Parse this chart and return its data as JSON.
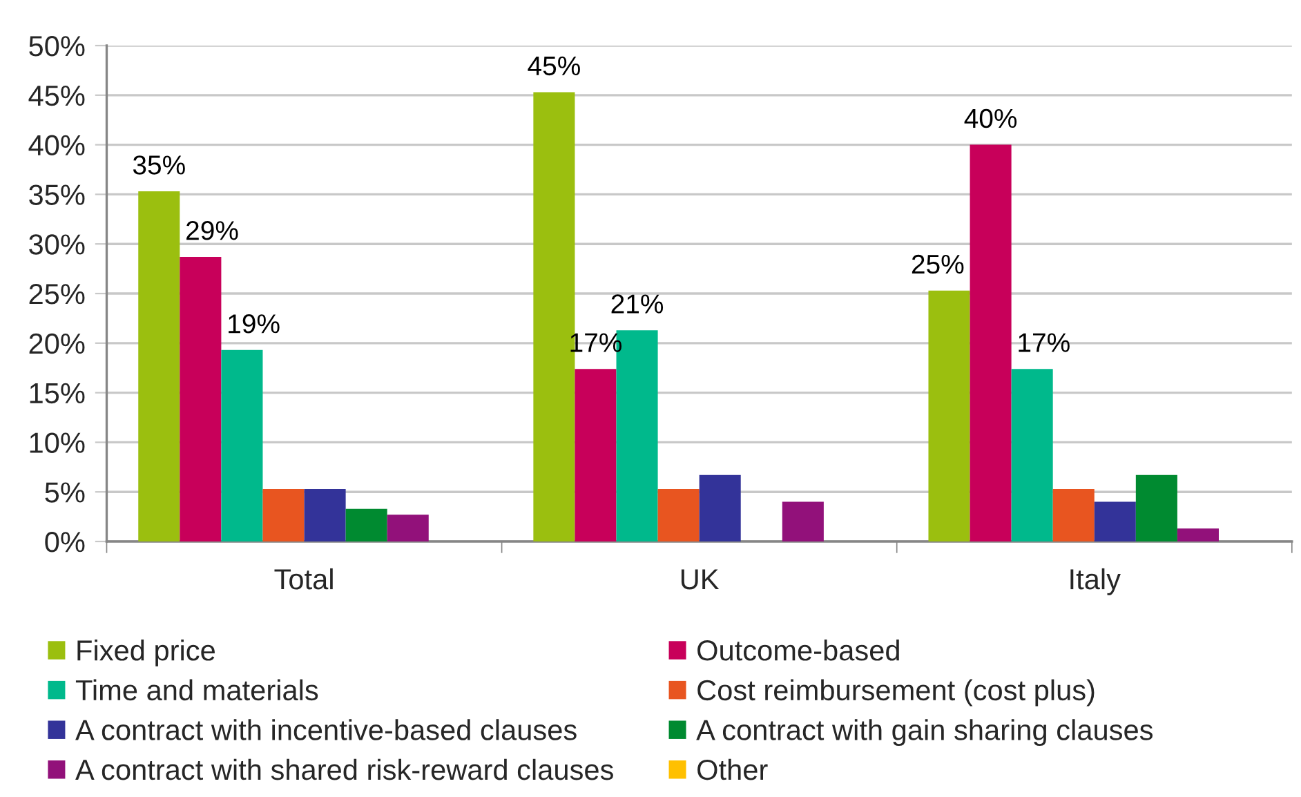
{
  "chart_data": {
    "type": "bar",
    "categories": [
      "Total",
      "UK",
      "Italy"
    ],
    "series": [
      {
        "name": "Fixed price",
        "color": "#9bbf0f",
        "values": [
          35.3,
          45.3,
          25.3
        ],
        "value_labels": [
          "35%",
          "45%",
          "25%"
        ]
      },
      {
        "name": "Outcome-based",
        "color": "#c8005a",
        "values": [
          28.7,
          17.4,
          40.0
        ],
        "value_labels": [
          "29%",
          "17%",
          "40%"
        ]
      },
      {
        "name": "Time and materials",
        "color": "#00b98c",
        "values": [
          19.3,
          21.3,
          17.4
        ],
        "value_labels": [
          "19%",
          "21%",
          "17%"
        ]
      },
      {
        "name": "Cost reimbursement (cost plus)",
        "color": "#e85520",
        "values": [
          5.3,
          5.3,
          5.3
        ]
      },
      {
        "name": "A contract with incentive-based clauses",
        "color": "#333399",
        "values": [
          5.3,
          6.7,
          4.0
        ]
      },
      {
        "name": "A contract with gain sharing clauses",
        "color": "#008a30",
        "values": [
          3.3,
          null,
          6.7
        ]
      },
      {
        "name": "A contract with shared risk-reward clauses",
        "color": "#92117a",
        "values": [
          2.7,
          4.0,
          1.3
        ]
      },
      {
        "name": "Other",
        "color": "#ffc000",
        "values": [
          null,
          null,
          null
        ]
      }
    ],
    "ylim": [
      0,
      50
    ],
    "yticks": [
      {
        "value": 0,
        "label": "0%"
      },
      {
        "value": 5,
        "label": "5%"
      },
      {
        "value": 10,
        "label": "10%"
      },
      {
        "value": 15,
        "label": "15%"
      },
      {
        "value": 20,
        "label": "20%"
      },
      {
        "value": 25,
        "label": "25%"
      },
      {
        "value": 30,
        "label": "30%"
      },
      {
        "value": 35,
        "label": "35%"
      },
      {
        "value": 40,
        "label": "40%"
      },
      {
        "value": 45,
        "label": "45%"
      },
      {
        "value": 50,
        "label": "50%"
      }
    ],
    "grid": "y",
    "legend": "bottom"
  }
}
